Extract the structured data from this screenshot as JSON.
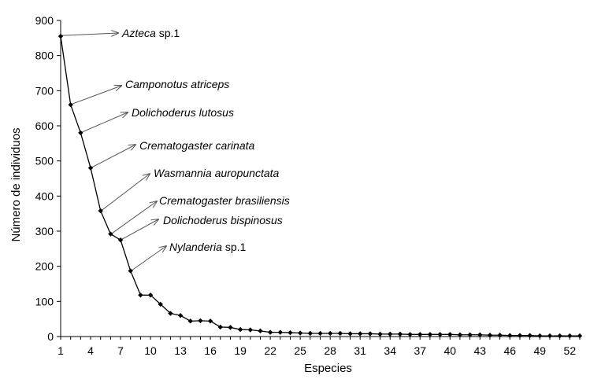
{
  "chart_data": {
    "type": "line",
    "xlabel": "Especies",
    "ylabel": "Número de individuos",
    "xlim": [
      1,
      53
    ],
    "ylim": [
      0,
      900
    ],
    "x_ticks": [
      "1",
      "4",
      "7",
      "10",
      "13",
      "16",
      "19",
      "22",
      "25",
      "28",
      "31",
      "34",
      "37",
      "40",
      "43",
      "46",
      "49",
      "52"
    ],
    "y_ticks": [
      "0",
      "100",
      "200",
      "300",
      "400",
      "500",
      "600",
      "700",
      "800",
      "900"
    ],
    "grid": false,
    "x": [
      1,
      2,
      3,
      4,
      5,
      6,
      7,
      8,
      9,
      10,
      11,
      12,
      13,
      14,
      15,
      16,
      17,
      18,
      19,
      20,
      21,
      22,
      23,
      24,
      25,
      26,
      27,
      28,
      29,
      30,
      31,
      32,
      33,
      34,
      35,
      36,
      37,
      38,
      39,
      40,
      41,
      42,
      43,
      44,
      45,
      46,
      47,
      48,
      49,
      50,
      51,
      52,
      53
    ],
    "values": [
      855,
      660,
      580,
      480,
      358,
      292,
      275,
      187,
      118,
      118,
      92,
      66,
      60,
      44,
      45,
      44,
      27,
      26,
      20,
      19,
      16,
      12,
      12,
      11,
      10,
      9,
      9,
      9,
      9,
      8,
      8,
      8,
      7,
      7,
      7,
      6,
      6,
      6,
      6,
      6,
      5,
      5,
      5,
      4,
      4,
      3,
      3,
      3,
      2,
      2,
      2,
      2,
      2
    ],
    "annotations": [
      {
        "species": 1,
        "genus": "Azteca",
        "epithet": "sp.1",
        "italic_epithet": false
      },
      {
        "species": 2,
        "genus": "Camponotus",
        "epithet": "atriceps",
        "italic_epithet": true
      },
      {
        "species": 3,
        "genus": "Dolichoderus",
        "epithet": "lutosus",
        "italic_epithet": true
      },
      {
        "species": 4,
        "genus": "Crematogaster",
        "epithet": "carinata",
        "italic_epithet": true
      },
      {
        "species": 5,
        "genus": "Wasmannia",
        "epithet": "auropunctata",
        "italic_epithet": true
      },
      {
        "species": 6,
        "genus": "Crematogaster",
        "epithet": "brasiliensis",
        "italic_epithet": true
      },
      {
        "species": 7,
        "genus": "Dolichoderus",
        "epithet": "bispinosus",
        "italic_epithet": true
      },
      {
        "species": 8,
        "genus": "Nylanderia",
        "epithet": "sp.1",
        "italic_epithet": false
      }
    ]
  }
}
